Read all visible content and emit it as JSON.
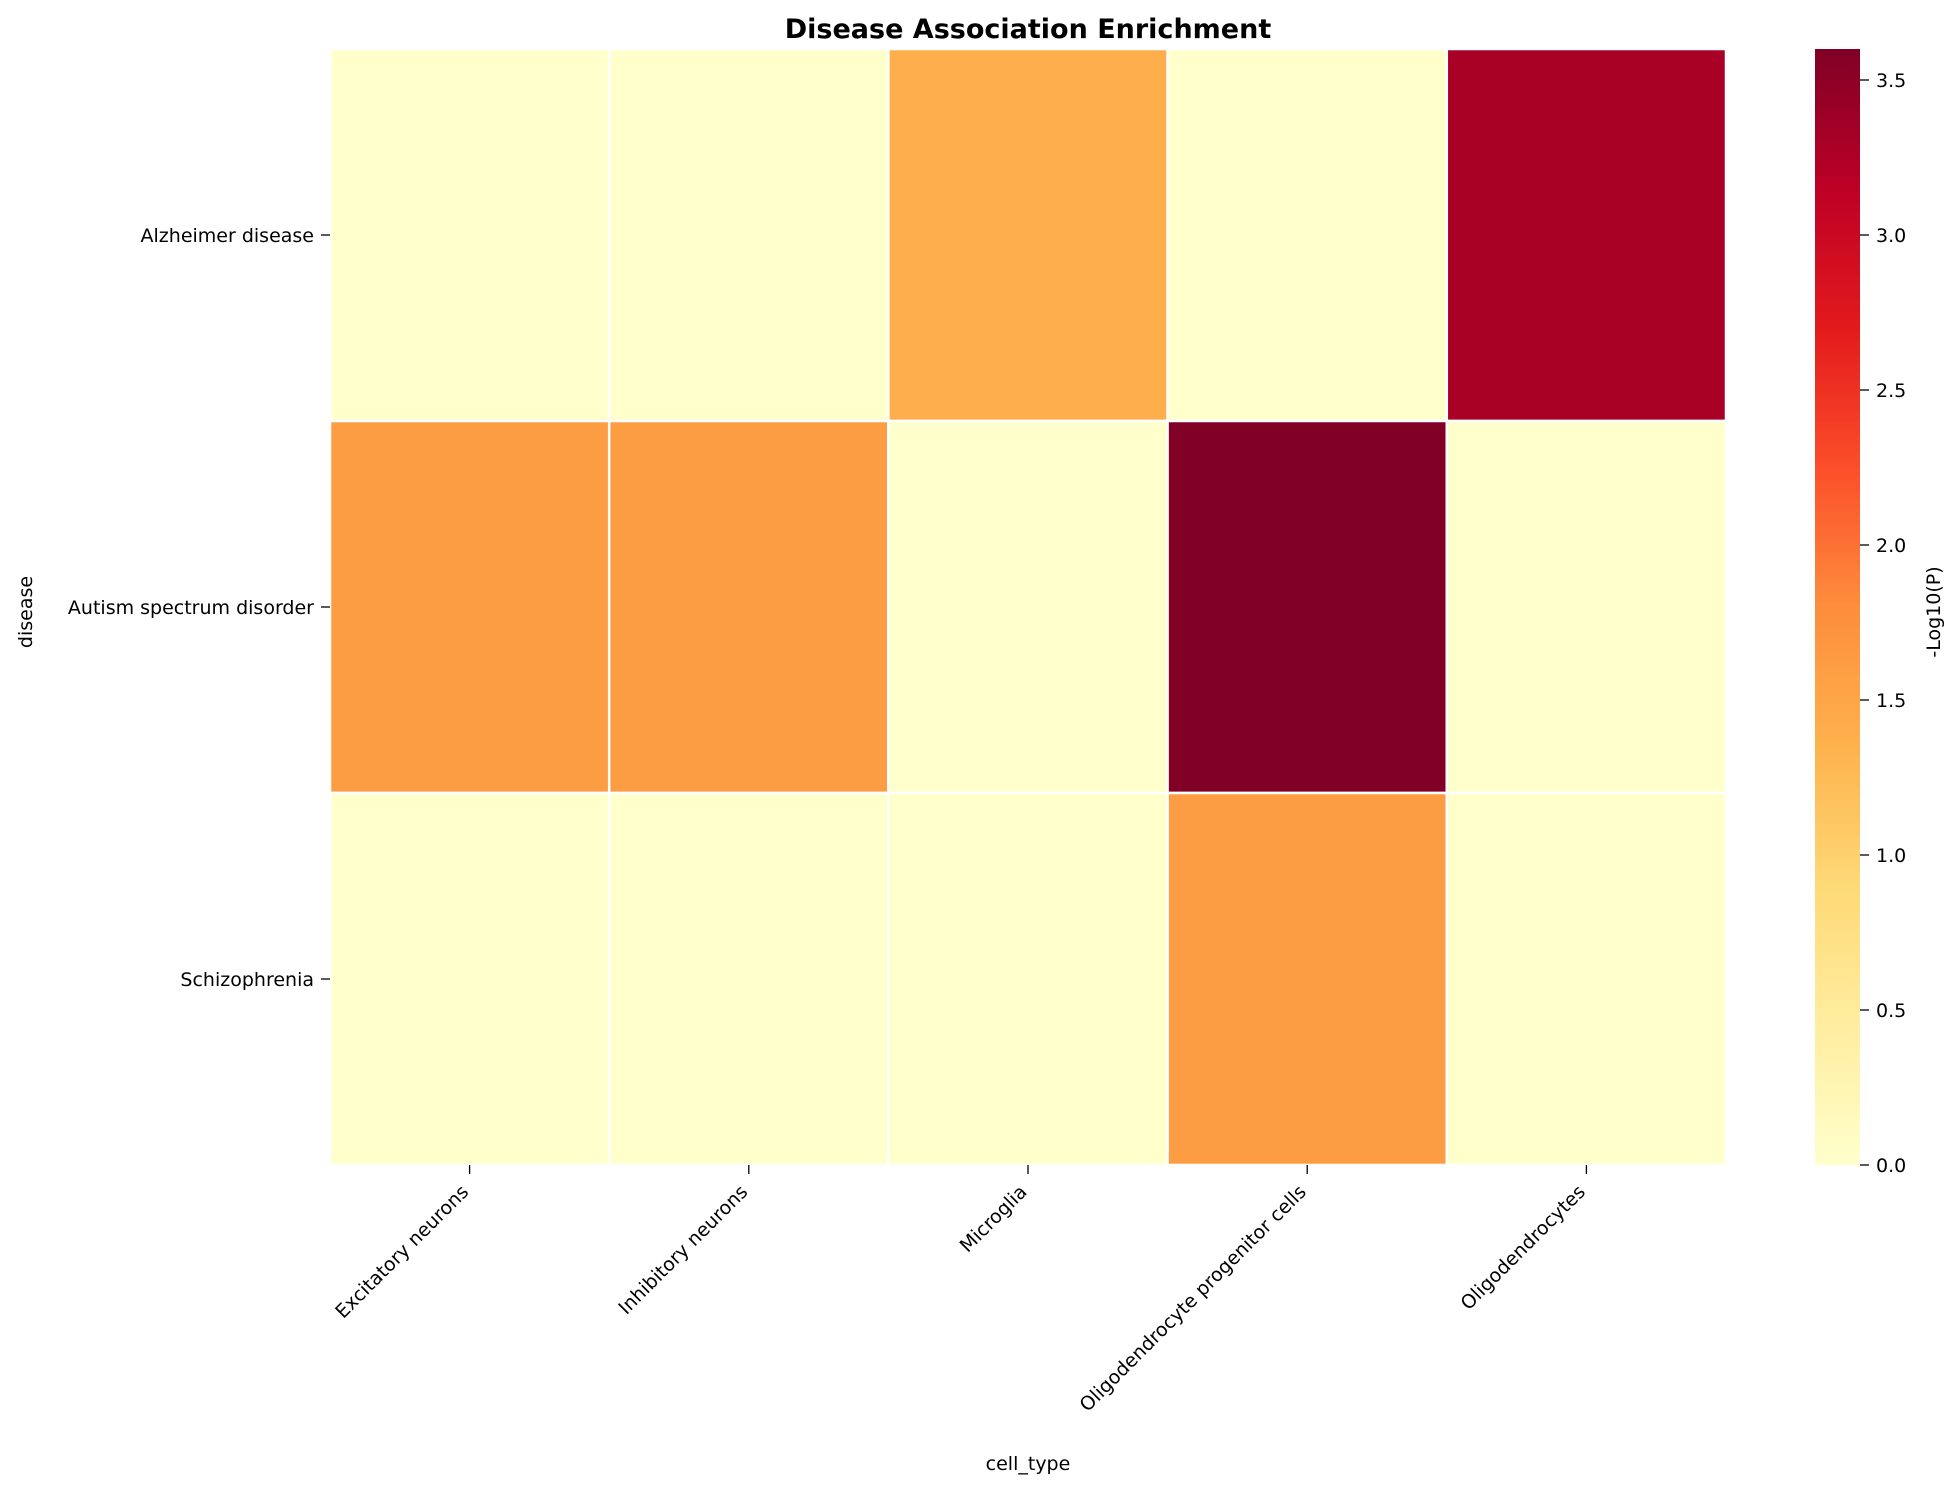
{
  "chart_data": {
    "type": "heatmap",
    "title": "Disease Association Enrichment",
    "xlabel": "cell_type",
    "ylabel": "disease",
    "x": [
      "Excitatory neurons",
      "Inhibitory neurons",
      "Microglia",
      "Oligodendrocyte progenitor cells",
      "Oligodendrocytes"
    ],
    "y": [
      "Alzheimer disease",
      "Autism spectrum disorder",
      "Schizophrenia"
    ],
    "values": [
      [
        0.0,
        0.0,
        1.4,
        0.0,
        3.3
      ],
      [
        1.6,
        1.6,
        0.0,
        3.6,
        0.0
      ],
      [
        0.0,
        0.0,
        0.0,
        1.6,
        0.0
      ]
    ],
    "colorbar": {
      "label": "-Log10(P)",
      "range": [
        0,
        3.6
      ],
      "ticks": [
        "0.0",
        "0.5",
        "1.0",
        "1.5",
        "2.0",
        "2.5",
        "3.0",
        "3.5"
      ],
      "colormap": "YlOrRd",
      "colors": [
        "#ffffcc",
        "#ffeda0",
        "#fed976",
        "#feb24c",
        "#fd8d3c",
        "#fc4e2a",
        "#e31a1c",
        "#bd0026",
        "#800026"
      ]
    },
    "grid": false,
    "cell_border_color": "#ffffff"
  }
}
